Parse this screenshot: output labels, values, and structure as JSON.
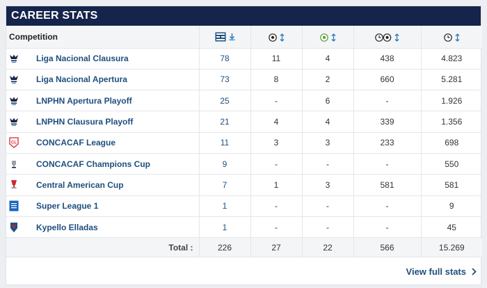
{
  "header": {
    "title": "CAREER STATS"
  },
  "table": {
    "columns": {
      "competition": "Competition",
      "apps_icon": "lineup-sort-icon",
      "goals_icon": "ball-sort-icon",
      "assists_icon": "assist-sort-icon",
      "minutes_per_goal_icon": "clock-ball-sort-icon",
      "minutes_icon": "clock-sort-icon"
    },
    "rows": [
      {
        "logo": "liga-nacional-logo-icon",
        "competition": "Liga Nacional Clausura",
        "apps": "78",
        "goals": "11",
        "assists": "4",
        "minutes_per_goal": "438",
        "minutes": "4.823"
      },
      {
        "logo": "liga-nacional-logo-icon",
        "competition": "Liga Nacional Apertura",
        "apps": "73",
        "goals": "8",
        "assists": "2",
        "minutes_per_goal": "660",
        "minutes": "5.281"
      },
      {
        "logo": "liga-nacional-logo-icon",
        "competition": "LNPHN Apertura Playoff",
        "apps": "25",
        "goals": "-",
        "assists": "6",
        "minutes_per_goal": "-",
        "minutes": "1.926"
      },
      {
        "logo": "liga-nacional-logo-icon",
        "competition": "LNPHN Clausura Playoff",
        "apps": "21",
        "goals": "4",
        "assists": "4",
        "minutes_per_goal": "339",
        "minutes": "1.356"
      },
      {
        "logo": "concacaf-league-logo-icon",
        "competition": "CONCACAF League",
        "apps": "11",
        "goals": "3",
        "assists": "3",
        "minutes_per_goal": "233",
        "minutes": "698"
      },
      {
        "logo": "champions-cup-logo-icon",
        "competition": "CONCACAF Champions Cup",
        "apps": "9",
        "goals": "-",
        "assists": "-",
        "minutes_per_goal": "-",
        "minutes": "550"
      },
      {
        "logo": "central-american-cup-logo-icon",
        "competition": "Central American Cup",
        "apps": "7",
        "goals": "1",
        "assists": "3",
        "minutes_per_goal": "581",
        "minutes": "581"
      },
      {
        "logo": "super-league-logo-icon",
        "competition": "Super League 1",
        "apps": "1",
        "goals": "-",
        "assists": "-",
        "minutes_per_goal": "-",
        "minutes": "9"
      },
      {
        "logo": "kypello-logo-icon",
        "competition": "Kypello Elladas",
        "apps": "1",
        "goals": "-",
        "assists": "-",
        "minutes_per_goal": "-",
        "minutes": "45"
      }
    ],
    "total": {
      "label": "Total :",
      "apps": "226",
      "goals": "27",
      "assists": "22",
      "minutes_per_goal": "566",
      "minutes": "15.269"
    }
  },
  "footer": {
    "link_label": "View full stats",
    "link_icon": "chevron-right-icon"
  },
  "colors": {
    "header_bg": "#15244b",
    "link": "#1f4f7e",
    "head_bg": "#f4f5f7",
    "border": "#e3e6ea"
  }
}
